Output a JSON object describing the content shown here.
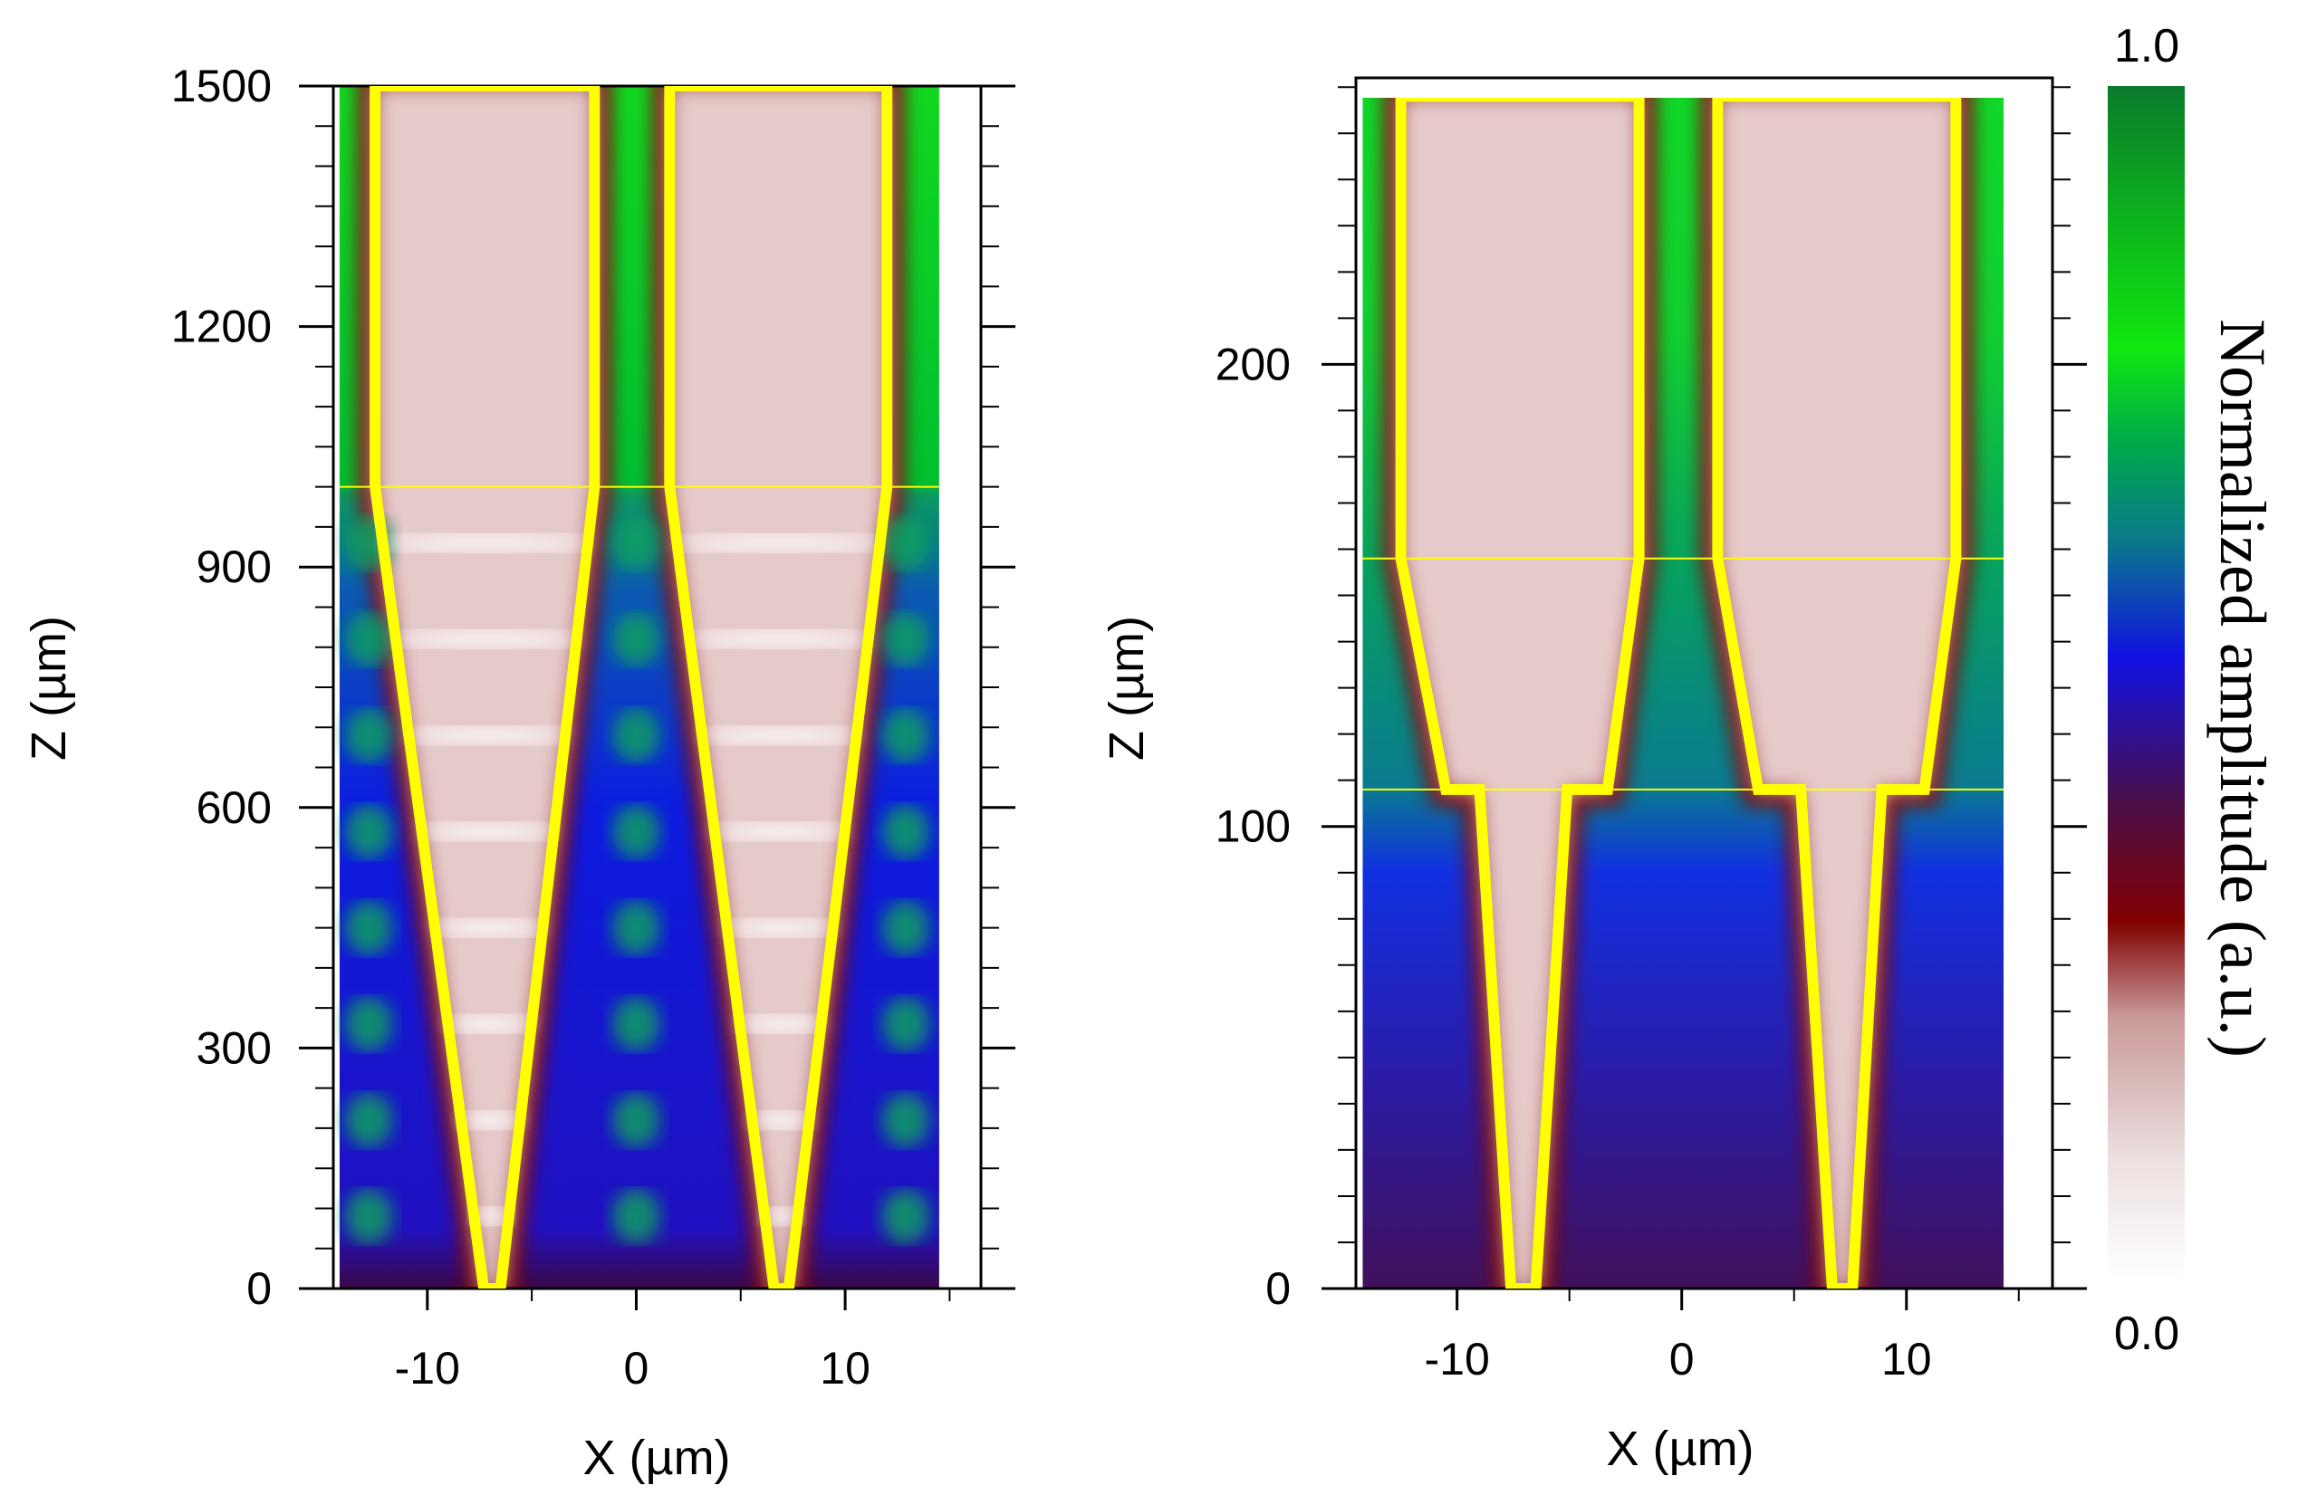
{
  "chart_data": [
    {
      "type": "heatmap",
      "id": "left-panel",
      "xlabel": "X (µm)",
      "ylabel": "Z (µm)",
      "xlim": [
        -14.5,
        16.5
      ],
      "ylim": [
        0,
        1500
      ],
      "data_extent_x": [
        -14.2,
        14.5
      ],
      "xticks": [
        -10,
        0,
        10
      ],
      "yticks": [
        0,
        300,
        600,
        900,
        1200,
        1500
      ],
      "y_minor_step": 50,
      "x_minor_step": 5,
      "section_boundary_z": 1000,
      "period_z": 120,
      "taper_outlines": [
        {
          "name": "left-taper",
          "points": [
            [
              -7.3,
              0
            ],
            [
              -12.5,
              1000
            ],
            [
              -12.5,
              1500
            ],
            [
              -2,
              1500
            ],
            [
              -2,
              1000
            ],
            [
              -6.5,
              0
            ]
          ]
        },
        {
          "name": "right-taper",
          "points": [
            [
              6.6,
              0
            ],
            [
              1.6,
              1000
            ],
            [
              1.6,
              1500
            ],
            [
              12,
              1500
            ],
            [
              12,
              1000
            ],
            [
              7.3,
              0
            ]
          ]
        }
      ]
    },
    {
      "type": "heatmap",
      "id": "right-panel",
      "xlabel": "X (µm)",
      "ylabel": "Z (µm)",
      "xlim": [
        -14.5,
        16.5
      ],
      "ylim": [
        0,
        262
      ],
      "data_extent_x": [
        -14.2,
        14.5
      ],
      "data_extent_z": [
        0,
        258
      ],
      "xticks": [
        -10,
        0,
        10
      ],
      "yticks": [
        0,
        100,
        200
      ],
      "y_minor_step": 10,
      "x_minor_step": 5,
      "section_boundaries_z": [
        108,
        158
      ],
      "taper_outlines": [
        {
          "name": "left-taper",
          "points": [
            [
              -7.6,
              0
            ],
            [
              -9,
              108
            ],
            [
              -10.5,
              108
            ],
            [
              -12.5,
              158
            ],
            [
              -12.5,
              258
            ],
            [
              -1.9,
              258
            ],
            [
              -1.9,
              158
            ],
            [
              -3.3,
              108
            ],
            [
              -5.1,
              108
            ],
            [
              -6.5,
              0
            ]
          ]
        },
        {
          "name": "right-taper",
          "points": [
            [
              6.7,
              0
            ],
            [
              5.3,
              108
            ],
            [
              3.4,
              108
            ],
            [
              1.6,
              158
            ],
            [
              1.6,
              258
            ],
            [
              12.2,
              258
            ],
            [
              12.2,
              158
            ],
            [
              10.8,
              108
            ],
            [
              8.9,
              108
            ],
            [
              7.6,
              0
            ]
          ]
        }
      ]
    }
  ],
  "colorbar": {
    "label": "Normalized amplitude (a.u.)",
    "min_label": "0.0",
    "max_label": "1.0",
    "min": 0.0,
    "max": 1.0
  },
  "colors": {
    "outline": "#ffff00",
    "boundary": "#ffff00",
    "colormap": [
      "#ffffff",
      "#e8cfcf",
      "#c99898",
      "#9a3a3a",
      "#7a0000",
      "#3c0a5a",
      "#1818d8",
      "#0a78a0",
      "#00b050",
      "#10e010",
      "#0a7a2a"
    ]
  }
}
